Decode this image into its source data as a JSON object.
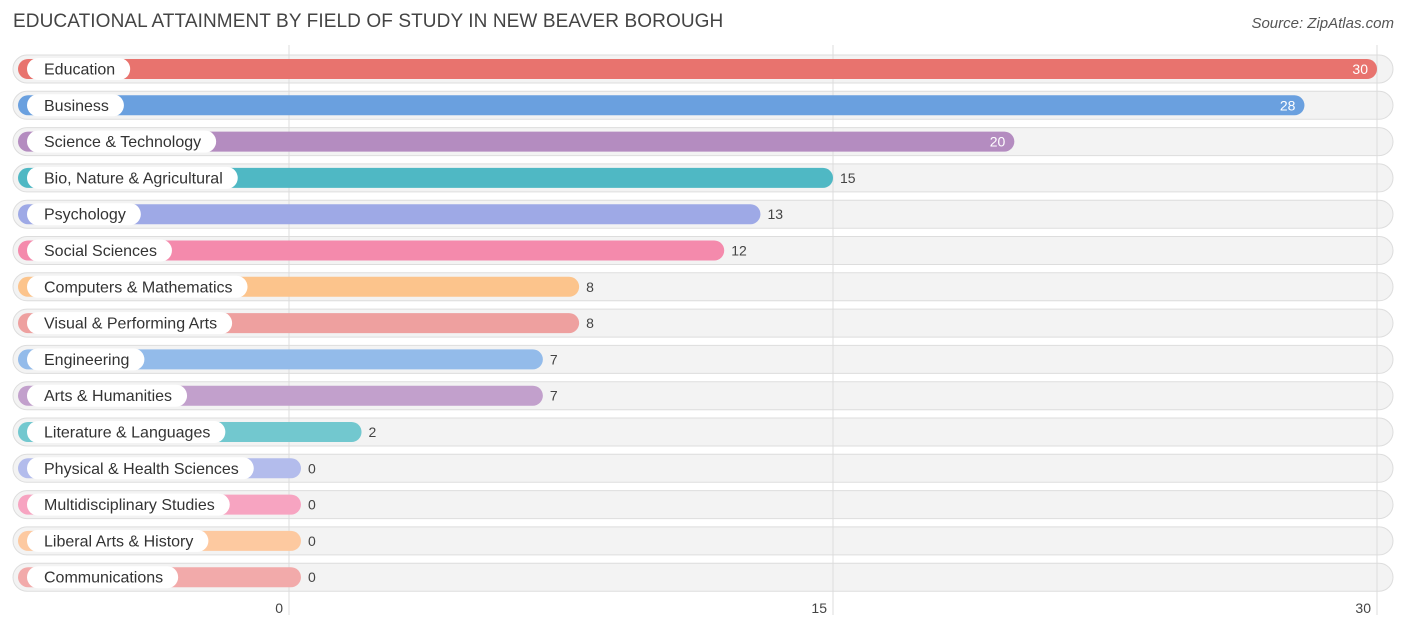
{
  "title": "EDUCATIONAL ATTAINMENT BY FIELD OF STUDY IN NEW BEAVER BOROUGH",
  "source": "Source: ZipAtlas.com",
  "chart_data": {
    "type": "bar",
    "orientation": "horizontal",
    "categories": [
      "Education",
      "Business",
      "Science & Technology",
      "Bio, Nature & Agricultural",
      "Psychology",
      "Social Sciences",
      "Computers & Mathematics",
      "Visual & Performing Arts",
      "Engineering",
      "Arts & Humanities",
      "Literature & Languages",
      "Physical & Health Sciences",
      "Multidisciplinary Studies",
      "Liberal Arts & History",
      "Communications"
    ],
    "values": [
      30,
      28,
      20,
      15,
      13,
      12,
      8,
      8,
      7,
      7,
      2,
      0,
      0,
      0,
      0
    ],
    "colors": [
      "#e8736e",
      "#6aa0df",
      "#b48cc0",
      "#4fb8c4",
      "#9ea9e6",
      "#f48aac",
      "#fcc48c",
      "#eea09f",
      "#93bbea",
      "#c2a0cc",
      "#72c8cf",
      "#b3bcec",
      "#f7a4c1",
      "#fdc9a0",
      "#f2aaaa"
    ],
    "xlim": [
      0,
      30
    ],
    "xticks": [
      0,
      15,
      30
    ],
    "grid": true
  }
}
